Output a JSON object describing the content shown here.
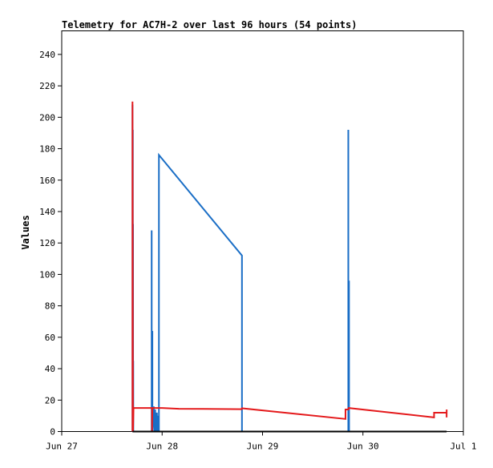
{
  "chart_data": {
    "type": "line",
    "title": "Telemetry for AC7H-2 over last 96 hours (54 points)",
    "xlabel": "",
    "ylabel": "Values",
    "x_range": [
      "2020-06-27T00:00",
      "2020-07-01T00:00"
    ],
    "ylim": [
      0,
      255
    ],
    "y_ticks": [
      0,
      20,
      40,
      60,
      80,
      100,
      120,
      140,
      160,
      180,
      200,
      220,
      240
    ],
    "x_ticks": [
      {
        "at": "2020-06-27T00:00",
        "label": "Jun 27"
      },
      {
        "at": "2020-06-28T00:00",
        "label": "Jun 28"
      },
      {
        "at": "2020-06-29T00:00",
        "label": "Jun 29"
      },
      {
        "at": "2020-06-30T00:00",
        "label": "Jun 30"
      },
      {
        "at": "2020-07-01T00:00",
        "label": "Jul 1"
      }
    ],
    "grid": false,
    "legend": "none",
    "series": [
      {
        "color": "#1a6ec6",
        "points": [
          [
            "2020-06-27T16:55",
            0
          ],
          [
            "2020-06-27T16:55",
            208
          ],
          [
            "2020-06-27T16:56",
            0
          ],
          [
            "2020-06-27T17:00",
            192
          ],
          [
            "2020-06-27T17:01",
            0
          ],
          [
            "2020-06-27T17:03",
            132
          ],
          [
            "2020-06-27T17:04",
            0
          ],
          [
            "2020-06-27T17:06",
            45
          ],
          [
            "2020-06-27T17:07",
            0
          ],
          [
            "2020-06-27T21:30",
            0
          ],
          [
            "2020-06-27T21:30",
            128
          ],
          [
            "2020-06-27T21:31",
            0
          ],
          [
            "2020-06-27T21:40",
            64
          ],
          [
            "2020-06-27T21:41",
            0
          ],
          [
            "2020-06-27T22:00",
            16
          ],
          [
            "2020-06-27T22:10",
            0
          ],
          [
            "2020-06-27T22:20",
            14
          ],
          [
            "2020-06-27T22:30",
            0
          ],
          [
            "2020-06-27T22:45",
            12
          ],
          [
            "2020-06-27T22:55",
            0
          ],
          [
            "2020-06-27T23:05",
            10
          ],
          [
            "2020-06-27T23:10",
            0
          ],
          [
            "2020-06-27T23:14",
            0
          ],
          [
            "2020-06-27T23:14",
            176
          ],
          [
            "2020-06-28T19:05",
            112
          ],
          [
            "2020-06-28T19:05",
            0
          ],
          [
            "2020-06-29T20:30",
            0
          ],
          [
            "2020-06-29T20:30",
            192
          ],
          [
            "2020-06-29T20:31",
            0
          ],
          [
            "2020-06-29T20:40",
            96
          ],
          [
            "2020-06-29T20:41",
            0
          ]
        ]
      },
      {
        "color": "#e41a1c",
        "points": [
          [
            "2020-06-27T16:55",
            0
          ],
          [
            "2020-06-27T16:55",
            210
          ],
          [
            "2020-06-27T16:58",
            130
          ],
          [
            "2020-06-27T17:00",
            50
          ],
          [
            "2020-06-27T17:02",
            0
          ],
          [
            "2020-06-27T17:10",
            15
          ],
          [
            "2020-06-27T20:00",
            15
          ],
          [
            "2020-06-27T21:35",
            15
          ],
          [
            "2020-06-27T21:35",
            0
          ],
          [
            "2020-06-27T21:40",
            15
          ],
          [
            "2020-06-27T23:00",
            15
          ],
          [
            "2020-06-28T00:00",
            15
          ],
          [
            "2020-06-28T04:00",
            14.5
          ],
          [
            "2020-06-28T19:00",
            14.2
          ],
          [
            "2020-06-28T19:05",
            14.8
          ],
          [
            "2020-06-29T19:50",
            8
          ],
          [
            "2020-06-29T19:50",
            14
          ],
          [
            "2020-06-29T20:30",
            14
          ],
          [
            "2020-06-29T20:35",
            15
          ],
          [
            "2020-06-30T17:00",
            9
          ],
          [
            "2020-06-30T17:00",
            12
          ],
          [
            "2020-06-30T20:00",
            12
          ],
          [
            "2020-06-30T20:00",
            9
          ],
          [
            "2020-06-30T20:01",
            14
          ]
        ]
      },
      {
        "color": "#000000",
        "points": [
          [
            "2020-06-27T16:55",
            0
          ],
          [
            "2020-06-30T20:00",
            0
          ]
        ]
      }
    ]
  }
}
